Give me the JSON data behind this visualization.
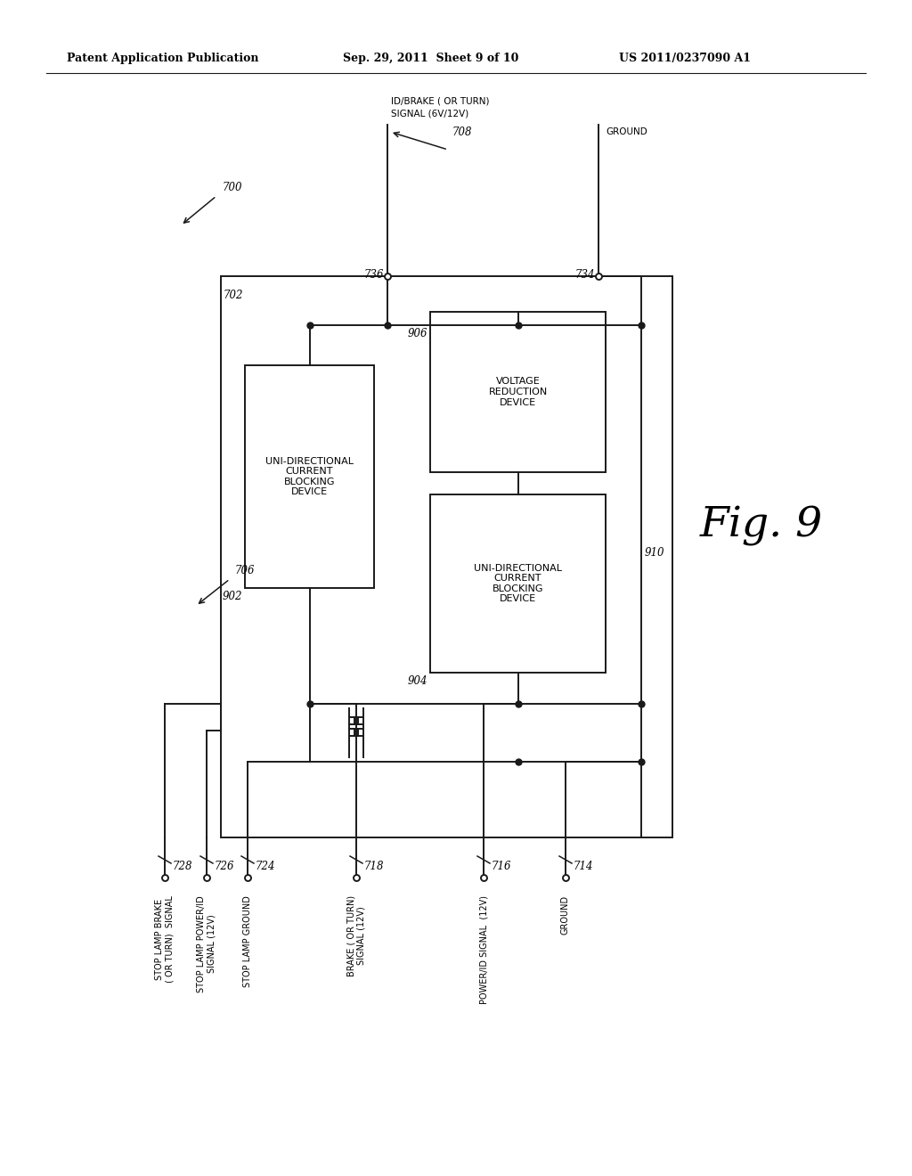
{
  "header_left": "Patent Application Publication",
  "header_mid": "Sep. 29, 2011  Sheet 9 of 10",
  "header_right": "US 2011/0237090 A1",
  "fig_label": "Fig. 9",
  "ref_700": "700",
  "ref_706": "706",
  "ref_708": "708",
  "ref_702": "702",
  "ref_736": "736",
  "ref_734": "734",
  "ref_906": "906",
  "ref_902": "902",
  "ref_904": "904",
  "ref_910": "910",
  "top_signal_text_line1": "ID/BRAKE ( OR TURN)",
  "top_signal_text_line2": "SIGNAL (6V/12V)",
  "top_ground_text": "GROUND",
  "box1_text": "UNI-DIRECTIONAL\nCURRENT\nBLOCKING\nDEVICE",
  "box2_text": "VOLTAGE\nREDUCTION\nDEVICE",
  "box3_text": "UNI-DIRECTIONAL\nCURRENT\nBLOCKING\nDEVICE",
  "conn_728_ref": "728",
  "conn_726_ref": "726",
  "conn_724_ref": "724",
  "conn_718_ref": "718",
  "conn_716_ref": "716",
  "conn_714_ref": "714",
  "conn_728_label": "STOP LAMP BRAKE\n( OR TURN)  SIGNAL",
  "conn_726_label": "STOP LAMP POWER/ID\nSIGNAL (12V)",
  "conn_724_label": "STOP LAMP GROUND",
  "conn_718_label": "BRAKE ( OR TURN)\nSIGNAL (12V)",
  "conn_716_label": "POWER/ID SIGNAL  (12V)",
  "conn_714_label": "GROUND",
  "bg_color": "#ffffff",
  "line_color": "#1a1a1a"
}
